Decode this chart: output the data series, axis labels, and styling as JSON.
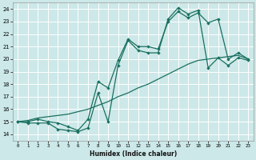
{
  "xlabel": "Humidex (Indice chaleur)",
  "bg_color": "#cce8e8",
  "grid_color": "#ffffff",
  "line_color": "#1a7060",
  "xlim": [
    -0.5,
    23.5
  ],
  "ylim": [
    13.5,
    24.5
  ],
  "xticks": [
    0,
    1,
    2,
    3,
    4,
    5,
    6,
    7,
    8,
    9,
    10,
    11,
    12,
    13,
    14,
    15,
    16,
    17,
    18,
    19,
    20,
    21,
    22,
    23
  ],
  "yticks": [
    14,
    15,
    16,
    17,
    18,
    19,
    20,
    21,
    22,
    23,
    24
  ],
  "series1_x": [
    0,
    1,
    2,
    3,
    4,
    5,
    6,
    7,
    8,
    9,
    10,
    11,
    12,
    13,
    14,
    15,
    16,
    17,
    18,
    19,
    20,
    21,
    22,
    23
  ],
  "series1_y": [
    15.0,
    14.9,
    14.9,
    14.9,
    14.4,
    14.3,
    14.2,
    14.5,
    17.3,
    15.0,
    19.5,
    21.5,
    20.7,
    20.5,
    20.5,
    23.2,
    24.1,
    23.6,
    23.9,
    19.3,
    20.1,
    19.5,
    20.1,
    19.9
  ],
  "series2_x": [
    0,
    1,
    2,
    3,
    4,
    5,
    6,
    7,
    8,
    9,
    10,
    11,
    12,
    13,
    14,
    15,
    16,
    17,
    18,
    19,
    20,
    21,
    22,
    23
  ],
  "series2_y": [
    15.0,
    15.0,
    15.2,
    15.0,
    14.9,
    14.6,
    14.3,
    15.2,
    18.2,
    17.7,
    19.9,
    21.6,
    21.0,
    21.0,
    20.8,
    23.0,
    23.8,
    23.3,
    23.7,
    22.9,
    23.2,
    20.0,
    20.5,
    20.0
  ],
  "series3_x": [
    0,
    1,
    2,
    3,
    4,
    5,
    6,
    7,
    8,
    9,
    10,
    11,
    12,
    13,
    14,
    15,
    16,
    17,
    18,
    19,
    20,
    21,
    22,
    23
  ],
  "series3_y": [
    15.0,
    15.1,
    15.3,
    15.4,
    15.5,
    15.6,
    15.8,
    16.0,
    16.3,
    16.6,
    17.0,
    17.3,
    17.7,
    18.0,
    18.4,
    18.8,
    19.2,
    19.6,
    19.9,
    20.0,
    20.1,
    20.2,
    20.3,
    20.0
  ]
}
